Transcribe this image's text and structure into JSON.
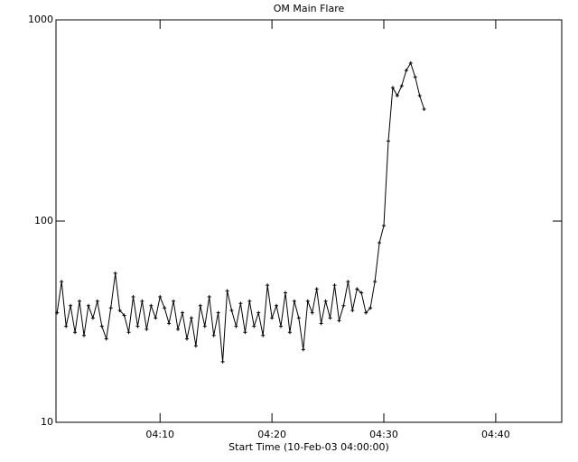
{
  "chart_data": {
    "type": "line",
    "title": "OM Main Flare",
    "x_label": "Start Time (10-Feb-03 04:00:00)",
    "x": [
      0.8,
      1.2,
      1.6,
      2.0,
      2.4,
      2.8,
      3.2,
      3.6,
      4.0,
      4.4,
      4.8,
      5.2,
      5.6,
      6.0,
      6.4,
      6.8,
      7.2,
      7.6,
      8.0,
      8.4,
      8.8,
      9.2,
      9.6,
      10.0,
      10.4,
      10.8,
      11.2,
      11.6,
      12.0,
      12.4,
      12.8,
      13.2,
      13.6,
      14.0,
      14.4,
      14.8,
      15.2,
      15.6,
      16.0,
      16.4,
      16.8,
      17.2,
      17.6,
      18.0,
      18.4,
      18.8,
      19.2,
      19.6,
      20.0,
      20.4,
      20.8,
      21.2,
      21.6,
      22.0,
      22.4,
      22.8,
      23.2,
      23.6,
      24.0,
      24.4,
      24.8,
      25.2,
      25.6,
      26.0,
      26.4,
      26.8,
      27.2,
      27.6,
      28.0,
      28.4,
      28.8,
      29.2,
      29.6,
      30.0,
      30.4,
      30.8,
      31.2,
      31.6,
      32.0,
      32.4,
      32.8,
      33.2,
      33.6
    ],
    "series": [
      {
        "color": "#000000",
        "values": [
          35,
          50,
          30,
          38,
          28,
          40,
          27,
          38,
          33,
          40,
          30,
          26,
          37,
          55,
          36,
          34,
          28,
          42,
          30,
          40,
          29,
          38,
          33,
          42,
          37,
          31,
          40,
          29,
          35,
          26,
          33,
          24,
          38,
          30,
          42,
          27,
          35,
          20,
          45,
          36,
          30,
          39,
          28,
          40,
          30,
          35,
          27,
          48,
          33,
          38,
          30,
          44,
          28,
          40,
          33,
          23,
          40,
          35,
          46,
          31,
          40,
          33,
          48,
          32,
          38,
          50,
          36,
          46,
          44,
          35,
          37,
          50,
          78,
          95,
          250,
          460,
          420,
          470,
          560,
          610,
          520,
          420,
          360
        ]
      }
    ],
    "xlim": [
      0.7,
      45.9
    ],
    "xticks": [
      {
        "value": 10,
        "label": "04:10"
      },
      {
        "value": 20,
        "label": "04:20"
      },
      {
        "value": 30,
        "label": "04:30"
      },
      {
        "value": 40,
        "label": "04:40"
      }
    ],
    "ylim": [
      10,
      1000
    ],
    "yticks": [
      10,
      100,
      1000
    ],
    "log_y": true
  }
}
